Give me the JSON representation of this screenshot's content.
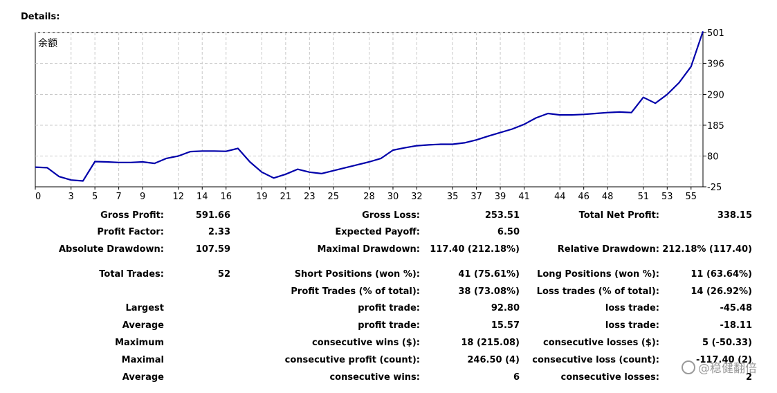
{
  "header": {
    "title": "Details:"
  },
  "chart_data": {
    "type": "line",
    "title": "余额",
    "x_tick_labels": [
      "0",
      "3",
      "5",
      "7",
      "9",
      "12",
      "14",
      "16",
      "19",
      "21",
      "23",
      "25",
      "28",
      "30",
      "32",
      "35",
      "37",
      "39",
      "41",
      "44",
      "46",
      "48",
      "51",
      "53",
      "55"
    ],
    "y_tick_labels": [
      "501",
      "396",
      "290",
      "185",
      "80",
      "-25"
    ],
    "ylim": [
      -25,
      501
    ],
    "xlim": [
      0,
      56
    ],
    "grid": true,
    "series": [
      {
        "color": "#0000aa",
        "x": [
          0,
          1,
          2,
          3,
          4,
          5,
          6,
          7,
          8,
          9,
          10,
          11,
          12,
          13,
          14,
          15,
          16,
          17,
          18,
          19,
          20,
          21,
          22,
          23,
          24,
          25,
          26,
          27,
          28,
          29,
          30,
          31,
          32,
          33,
          34,
          35,
          36,
          37,
          38,
          39,
          40,
          41,
          42,
          43,
          44,
          45,
          46,
          47,
          48,
          49,
          50,
          51,
          52,
          53,
          54,
          55,
          56
        ],
        "values": [
          42,
          40,
          10,
          -2,
          -5,
          61,
          60,
          58,
          58,
          60,
          55,
          72,
          80,
          95,
          97,
          97,
          96,
          106,
          60,
          25,
          5,
          18,
          35,
          25,
          20,
          30,
          40,
          50,
          60,
          72,
          100,
          108,
          115,
          118,
          120,
          120,
          125,
          135,
          148,
          160,
          172,
          188,
          210,
          225,
          220,
          220,
          222,
          225,
          228,
          230,
          228,
          280,
          260,
          290,
          330,
          385,
          505
        ]
      }
    ]
  },
  "stats": {
    "gross_profit_label": "Gross Profit:",
    "gross_profit": "591.66",
    "gross_loss_label": "Gross Loss:",
    "gross_loss": "253.51",
    "total_net_profit_label": "Total Net Profit:",
    "total_net_profit": "338.15",
    "profit_factor_label": "Profit Factor:",
    "profit_factor": "2.33",
    "expected_payoff_label": "Expected Payoff:",
    "expected_payoff": "6.50",
    "absolute_drawdown_label": "Absolute Drawdown:",
    "absolute_drawdown": "107.59",
    "maximal_drawdown_label": "Maximal Drawdown:",
    "maximal_drawdown": "117.40 (212.18%)",
    "relative_drawdown_label": "Relative Drawdown:",
    "relative_drawdown": "212.18% (117.40)",
    "total_trades_label": "Total Trades:",
    "total_trades": "52",
    "short_positions_label": "Short Positions (won %):",
    "short_positions": "41 (75.61%)",
    "long_positions_label": "Long Positions (won %):",
    "long_positions": "11 (63.64%)",
    "profit_trades_label": "Profit Trades (% of total):",
    "profit_trades": "38 (73.08%)",
    "loss_trades_label": "Loss trades (% of total):",
    "loss_trades": "14 (26.92%)",
    "largest_label": "Largest",
    "largest_profit_label": "profit trade:",
    "largest_profit": "92.80",
    "largest_loss_label": "loss trade:",
    "largest_loss": "-45.48",
    "average_label": "Average",
    "average_profit_label": "profit trade:",
    "average_profit": "15.57",
    "average_loss_label": "loss trade:",
    "average_loss": "-18.11",
    "maximum_label": "Maximum",
    "max_consec_wins_label": "consecutive wins ($):",
    "max_consec_wins": "18 (215.08)",
    "max_consec_losses_label": "consecutive losses ($):",
    "max_consec_losses": "5 (-50.33)",
    "maximal_label": "Maximal",
    "maximal_consec_profit_label": "consecutive profit (count):",
    "maximal_consec_profit": "246.50 (4)",
    "maximal_consec_loss_label": "consecutive loss (count):",
    "maximal_consec_loss": "-117.40 (2)",
    "average2_label": "Average",
    "avg_consec_wins_label": "consecutive wins:",
    "avg_consec_wins": "6",
    "avg_consec_losses_label": "consecutive losses:",
    "avg_consec_losses": "2"
  },
  "watermark": {
    "text": "@稳健翻倍"
  }
}
